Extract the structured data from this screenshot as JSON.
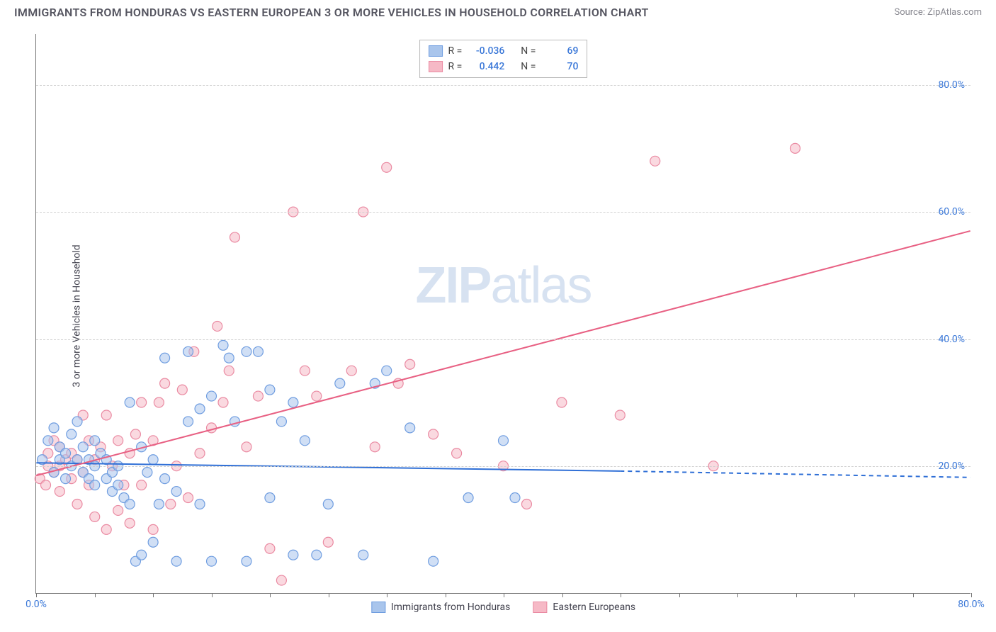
{
  "title": "IMMIGRANTS FROM HONDURAS VS EASTERN EUROPEAN 3 OR MORE VEHICLES IN HOUSEHOLD CORRELATION CHART",
  "source": "Source: ZipAtlas.com",
  "ylabel": "3 or more Vehicles in Household",
  "watermark_zip": "ZIP",
  "watermark_atlas": "atlas",
  "series_a": {
    "label": "Immigrants from Honduras",
    "color_fill": "#a9c5ec",
    "color_stroke": "#6f9de0",
    "fill_opacity": 0.55,
    "r_label": "R =",
    "r_value": "-0.036",
    "n_label": "N =",
    "n_value": "69",
    "trend": {
      "x1": 0,
      "y1": 20.5,
      "x2_solid": 50,
      "y2_solid": 19.2,
      "x2": 80,
      "y2": 18.2,
      "color": "#2f6fd6",
      "width": 2
    },
    "points": [
      [
        0.5,
        21
      ],
      [
        1,
        24
      ],
      [
        1.5,
        19
      ],
      [
        1.5,
        26
      ],
      [
        2,
        21
      ],
      [
        2,
        23
      ],
      [
        2.5,
        18
      ],
      [
        2.5,
        22
      ],
      [
        3,
        20
      ],
      [
        3,
        25
      ],
      [
        3.5,
        21
      ],
      [
        3.5,
        27
      ],
      [
        4,
        19
      ],
      [
        4,
        23
      ],
      [
        4.5,
        18
      ],
      [
        4.5,
        21
      ],
      [
        5,
        17
      ],
      [
        5,
        20
      ],
      [
        5,
        24
      ],
      [
        5.5,
        22
      ],
      [
        6,
        18
      ],
      [
        6,
        21
      ],
      [
        6.5,
        16
      ],
      [
        6.5,
        19
      ],
      [
        7,
        17
      ],
      [
        7,
        20
      ],
      [
        7.5,
        15
      ],
      [
        8,
        14
      ],
      [
        8,
        30
      ],
      [
        8.5,
        5
      ],
      [
        9,
        6
      ],
      [
        9,
        23
      ],
      [
        9.5,
        19
      ],
      [
        10,
        8
      ],
      [
        10,
        21
      ],
      [
        10.5,
        14
      ],
      [
        11,
        18
      ],
      [
        11,
        37
      ],
      [
        12,
        5
      ],
      [
        12,
        16
      ],
      [
        13,
        27
      ],
      [
        13,
        38
      ],
      [
        14,
        14
      ],
      [
        14,
        29
      ],
      [
        15,
        5
      ],
      [
        15,
        31
      ],
      [
        16,
        39
      ],
      [
        16.5,
        37
      ],
      [
        17,
        27
      ],
      [
        18,
        38
      ],
      [
        18,
        5
      ],
      [
        19,
        38
      ],
      [
        20,
        32
      ],
      [
        20,
        15
      ],
      [
        21,
        27
      ],
      [
        22,
        6
      ],
      [
        22,
        30
      ],
      [
        23,
        24
      ],
      [
        24,
        6
      ],
      [
        25,
        14
      ],
      [
        26,
        33
      ],
      [
        28,
        6
      ],
      [
        29,
        33
      ],
      [
        30,
        35
      ],
      [
        32,
        26
      ],
      [
        34,
        5
      ],
      [
        37,
        15
      ],
      [
        40,
        24
      ],
      [
        41,
        15
      ]
    ]
  },
  "series_b": {
    "label": "Eastern Europeans",
    "color_fill": "#f6b9c6",
    "color_stroke": "#ea8aa2",
    "fill_opacity": 0.55,
    "r_label": "R =",
    "r_value": "0.442",
    "n_label": "N =",
    "n_value": "70",
    "trend": {
      "x1": 0,
      "y1": 18.5,
      "x2": 80,
      "y2": 57,
      "color": "#e86083",
      "width": 2
    },
    "points": [
      [
        0.3,
        18
      ],
      [
        0.8,
        17
      ],
      [
        1,
        20
      ],
      [
        1,
        22
      ],
      [
        1.5,
        19
      ],
      [
        1.5,
        24
      ],
      [
        2,
        16
      ],
      [
        2,
        20
      ],
      [
        2,
        23
      ],
      [
        2.5,
        21
      ],
      [
        3,
        18
      ],
      [
        3,
        22
      ],
      [
        3.5,
        14
      ],
      [
        3.5,
        21
      ],
      [
        4,
        19
      ],
      [
        4,
        28
      ],
      [
        4.5,
        17
      ],
      [
        4.5,
        24
      ],
      [
        5,
        12
      ],
      [
        5,
        21
      ],
      [
        5.5,
        23
      ],
      [
        6,
        10
      ],
      [
        6,
        28
      ],
      [
        6.5,
        20
      ],
      [
        7,
        13
      ],
      [
        7,
        24
      ],
      [
        7.5,
        17
      ],
      [
        8,
        11
      ],
      [
        8,
        22
      ],
      [
        8.5,
        25
      ],
      [
        9,
        17
      ],
      [
        9,
        30
      ],
      [
        10,
        10
      ],
      [
        10,
        24
      ],
      [
        10.5,
        30
      ],
      [
        11,
        33
      ],
      [
        11.5,
        14
      ],
      [
        12,
        20
      ],
      [
        12.5,
        32
      ],
      [
        13,
        15
      ],
      [
        13.5,
        38
      ],
      [
        14,
        22
      ],
      [
        15,
        26
      ],
      [
        15.5,
        42
      ],
      [
        16,
        30
      ],
      [
        16.5,
        35
      ],
      [
        17,
        56
      ],
      [
        18,
        23
      ],
      [
        19,
        31
      ],
      [
        20,
        7
      ],
      [
        21,
        2
      ],
      [
        22,
        60
      ],
      [
        23,
        35
      ],
      [
        24,
        31
      ],
      [
        25,
        8
      ],
      [
        27,
        35
      ],
      [
        28,
        60
      ],
      [
        29,
        23
      ],
      [
        30,
        67
      ],
      [
        31,
        33
      ],
      [
        32,
        36
      ],
      [
        34,
        25
      ],
      [
        36,
        22
      ],
      [
        40,
        20
      ],
      [
        42,
        14
      ],
      [
        45,
        30
      ],
      [
        50,
        28
      ],
      [
        53,
        68
      ],
      [
        58,
        20
      ],
      [
        65,
        70
      ]
    ]
  },
  "axes": {
    "xlim": [
      0,
      80
    ],
    "ylim": [
      0,
      88
    ],
    "xtick_positions": [
      0,
      5,
      10,
      15,
      20,
      25,
      30,
      35,
      40,
      45,
      50,
      55,
      60,
      65,
      70,
      75,
      80
    ],
    "xtick_labels": {
      "0": "0.0%",
      "80": "80.0%"
    },
    "ytick_positions": [
      20,
      40,
      60,
      80
    ],
    "ytick_labels": [
      "20.0%",
      "40.0%",
      "60.0%",
      "80.0%"
    ],
    "grid_color": "#d0d0d0",
    "label_color": "#3b78d8",
    "label_fontsize": 14
  },
  "background_color": "#ffffff",
  "marker_radius": 7
}
